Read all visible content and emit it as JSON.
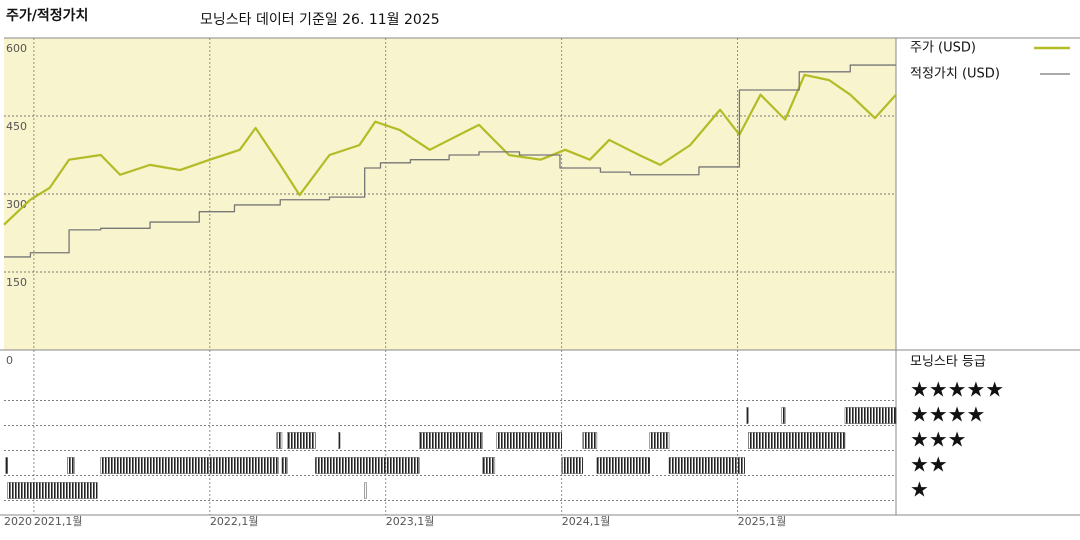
{
  "chart_data": {
    "type": "line",
    "title": "주가/적정가치",
    "subtitle": "모닝스타 데이터 기준일 26. 11월 2025",
    "xlim": [
      2020.83,
      2025.9
    ],
    "xticks": [
      {
        "value": 2020.83,
        "label": "2020"
      },
      {
        "value": 2021,
        "label": "2021,1월"
      },
      {
        "value": 2022,
        "label": "2022,1월"
      },
      {
        "value": 2023,
        "label": "2023,1월"
      },
      {
        "value": 2024,
        "label": "2024,1월"
      },
      {
        "value": 2025,
        "label": "2025,1월"
      }
    ],
    "ylim": [
      0,
      600
    ],
    "yticks": [
      0,
      150,
      300,
      450,
      600
    ],
    "grid": true,
    "series": [
      {
        "name": "주가 (USD)",
        "color": "#b3bb26",
        "step": false,
        "x": [
          2020.83,
          2020.98,
          2021.09,
          2021.2,
          2021.38,
          2021.49,
          2021.66,
          2021.83,
          2022.0,
          2022.17,
          2022.26,
          2022.4,
          2022.51,
          2022.68,
          2022.85,
          2022.94,
          2023.08,
          2023.25,
          2023.36,
          2023.53,
          2023.7,
          2023.88,
          2024.02,
          2024.16,
          2024.27,
          2024.44,
          2024.56,
          2024.73,
          2024.9,
          2025.01,
          2025.13,
          2025.27,
          2025.38,
          2025.52,
          2025.64,
          2025.78,
          2025.9
        ],
        "values": [
          241,
          289,
          312,
          366,
          375,
          337,
          356,
          346,
          366,
          385,
          427,
          356,
          298,
          375,
          394,
          439,
          423,
          385,
          404,
          433,
          375,
          366,
          385,
          366,
          404,
          375,
          356,
          394,
          462,
          414,
          491,
          443,
          529,
          519,
          491,
          446,
          491
        ]
      },
      {
        "name": "적정가치 (USD)",
        "color": "#777777",
        "step": true,
        "x": [
          2020.83,
          2020.98,
          2021.2,
          2021.38,
          2021.66,
          2021.94,
          2022.14,
          2022.4,
          2022.68,
          2022.88,
          2022.97,
          2023.14,
          2023.36,
          2023.53,
          2023.76,
          2023.99,
          2024.22,
          2024.39,
          2024.78,
          2025.01,
          2025.35,
          2025.64,
          2025.9
        ],
        "values": [
          179,
          187,
          231,
          234,
          246,
          266,
          279,
          289,
          294,
          350,
          360,
          366,
          375,
          381,
          375,
          350,
          342,
          337,
          352,
          500,
          535,
          548,
          548
        ]
      }
    ],
    "ratings": {
      "title": "모닝스타 등급",
      "levels": [
        {
          "stars": 5,
          "label": "★★★★★"
        },
        {
          "stars": 4,
          "label": "★★★★"
        },
        {
          "stars": 3,
          "label": "★★★"
        },
        {
          "stars": 2,
          "label": "★★"
        },
        {
          "stars": 1,
          "label": "★"
        }
      ],
      "periods": [
        {
          "stars": 1,
          "start": 2020.85,
          "end": 2021.36
        },
        {
          "stars": 1,
          "start": 2022.88,
          "end": 2022.885
        },
        {
          "stars": 2,
          "start": 2020.84,
          "end": 2020.85
        },
        {
          "stars": 2,
          "start": 2021.19,
          "end": 2021.23
        },
        {
          "stars": 2,
          "start": 2021.38,
          "end": 2022.39
        },
        {
          "stars": 2,
          "start": 2022.41,
          "end": 2022.44
        },
        {
          "stars": 2,
          "start": 2022.6,
          "end": 2023.19
        },
        {
          "stars": 2,
          "start": 2023.55,
          "end": 2023.62
        },
        {
          "stars": 2,
          "start": 2024.0,
          "end": 2024.12
        },
        {
          "stars": 2,
          "start": 2024.2,
          "end": 2024.5
        },
        {
          "stars": 2,
          "start": 2024.61,
          "end": 2025.04
        },
        {
          "stars": 3,
          "start": 2022.38,
          "end": 2022.41
        },
        {
          "stars": 3,
          "start": 2022.44,
          "end": 2022.6
        },
        {
          "stars": 3,
          "start": 2022.73,
          "end": 2022.74
        },
        {
          "stars": 3,
          "start": 2023.19,
          "end": 2023.55
        },
        {
          "stars": 3,
          "start": 2023.63,
          "end": 2024.0
        },
        {
          "stars": 3,
          "start": 2024.12,
          "end": 2024.2
        },
        {
          "stars": 3,
          "start": 2024.5,
          "end": 2024.61
        },
        {
          "stars": 3,
          "start": 2025.06,
          "end": 2025.61
        },
        {
          "stars": 4,
          "start": 2025.05,
          "end": 2025.06
        },
        {
          "stars": 4,
          "start": 2025.25,
          "end": 2025.27
        },
        {
          "stars": 4,
          "start": 2025.61,
          "end": 2025.9
        }
      ]
    }
  }
}
